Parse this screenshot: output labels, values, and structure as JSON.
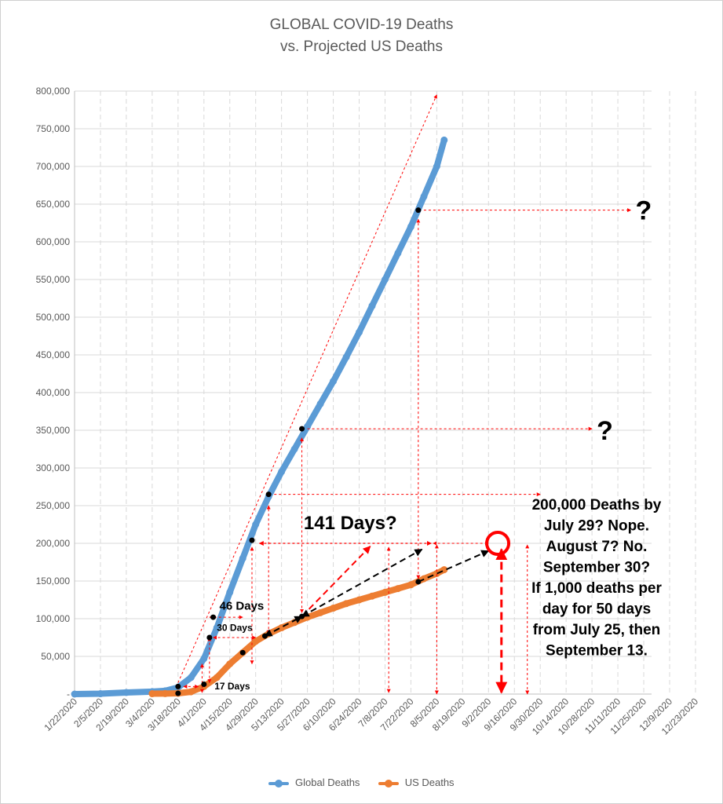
{
  "chart_data": {
    "type": "line",
    "title": "GLOBAL COVID-19 Deaths",
    "subtitle": "vs. Projected US Deaths",
    "ylim": [
      0,
      800000
    ],
    "y_ticks": [
      "-",
      "50,000",
      "100,000",
      "150,000",
      "200,000",
      "250,000",
      "300,000",
      "350,000",
      "400,000",
      "450,000",
      "500,000",
      "550,000",
      "600,000",
      "650,000",
      "700,000",
      "750,000",
      "800,000"
    ],
    "x_ticks": [
      "1/22/2020",
      "2/5/2020",
      "2/19/2020",
      "3/4/2020",
      "3/18/2020",
      "4/1/2020",
      "4/15/2020",
      "4/29/2020",
      "5/13/2020",
      "5/27/2020",
      "6/10/2020",
      "6/24/2020",
      "7/8/2020",
      "7/22/2020",
      "8/5/2020",
      "8/19/2020",
      "9/2/2020",
      "9/16/2020",
      "9/30/2020",
      "10/14/2020",
      "10/28/2020",
      "11/11/2020",
      "11/25/2020",
      "12/9/2020",
      "12/23/2020"
    ],
    "grid": true,
    "legend_position": "bottom",
    "series": [
      {
        "name": "Global Deaths",
        "color": "#5b9bd5",
        "points": [
          [
            "1/22/2020",
            0
          ],
          [
            "2/5/2020",
            500
          ],
          [
            "2/19/2020",
            2100
          ],
          [
            "3/4/2020",
            3200
          ],
          [
            "3/11/2020",
            4300
          ],
          [
            "3/18/2020",
            8800
          ],
          [
            "3/25/2020",
            22000
          ],
          [
            "4/1/2020",
            47000
          ],
          [
            "4/8/2020",
            88000
          ],
          [
            "4/15/2020",
            135000
          ],
          [
            "4/22/2020",
            180000
          ],
          [
            "4/29/2020",
            225000
          ],
          [
            "5/6/2020",
            262000
          ],
          [
            "5/13/2020",
            295000
          ],
          [
            "5/20/2020",
            325000
          ],
          [
            "5/27/2020",
            355000
          ],
          [
            "6/3/2020",
            385000
          ],
          [
            "6/10/2020",
            415000
          ],
          [
            "6/17/2020",
            447000
          ],
          [
            "6/24/2020",
            480000
          ],
          [
            "7/1/2020",
            515000
          ],
          [
            "7/8/2020",
            550000
          ],
          [
            "7/15/2020",
            585000
          ],
          [
            "7/22/2020",
            620000
          ],
          [
            "7/29/2020",
            660000
          ],
          [
            "8/5/2020",
            700000
          ],
          [
            "8/9/2020",
            735000
          ]
        ]
      },
      {
        "name": "US Deaths",
        "color": "#ed7d31",
        "points": [
          [
            "3/4/2020",
            500
          ],
          [
            "3/11/2020",
            600
          ],
          [
            "3/18/2020",
            1000
          ],
          [
            "3/25/2020",
            3000
          ],
          [
            "4/1/2020",
            10000
          ],
          [
            "4/8/2020",
            22000
          ],
          [
            "4/15/2020",
            40000
          ],
          [
            "4/22/2020",
            55000
          ],
          [
            "4/29/2020",
            70000
          ],
          [
            "5/6/2020",
            80000
          ],
          [
            "5/13/2020",
            88000
          ],
          [
            "5/20/2020",
            95000
          ],
          [
            "5/27/2020",
            102000
          ],
          [
            "6/3/2020",
            108000
          ],
          [
            "6/10/2020",
            114000
          ],
          [
            "6/17/2020",
            120000
          ],
          [
            "6/24/2020",
            125000
          ],
          [
            "7/1/2020",
            130000
          ],
          [
            "7/8/2020",
            135000
          ],
          [
            "7/15/2020",
            140000
          ],
          [
            "7/22/2020",
            145000
          ],
          [
            "7/29/2020",
            153000
          ],
          [
            "8/5/2020",
            160000
          ],
          [
            "8/9/2020",
            165000
          ]
        ]
      }
    ],
    "markers": [
      [
        "3/18/2020",
        10000
      ],
      [
        "3/18/2020",
        1000
      ],
      [
        "4/1/2020",
        13000
      ],
      [
        "4/4/2020",
        75000
      ],
      [
        "4/6/2020",
        102000
      ],
      [
        "4/22/2020",
        55000
      ],
      [
        "4/27/2020",
        204000
      ],
      [
        "5/4/2020",
        77000
      ],
      [
        "5/6/2020",
        265000
      ],
      [
        "5/24/2020",
        352000
      ],
      [
        "5/24/2020",
        103000
      ],
      [
        "7/26/2020",
        642000
      ],
      [
        "7/26/2020",
        149000
      ]
    ],
    "projection_circle": [
      "9/7/2020",
      200000
    ],
    "annotations": {
      "days_141": "141 Days?",
      "days_46": "46 Days",
      "days_30": "30 Days",
      "days_17": "17 Days",
      "q1": "?",
      "q2": "?",
      "note": [
        "200,000 Deaths by",
        "July 29? Nope.",
        "August 7? No.",
        "September 30?",
        "If 1,000 deaths per",
        "day for 50 days",
        "from July 25, then",
        "September 13."
      ]
    }
  },
  "colors": {
    "arrow_red": "#ff0000",
    "arrow_black": "#000000",
    "grid": "#d9d9d9",
    "axis": "#bfbfbf"
  }
}
